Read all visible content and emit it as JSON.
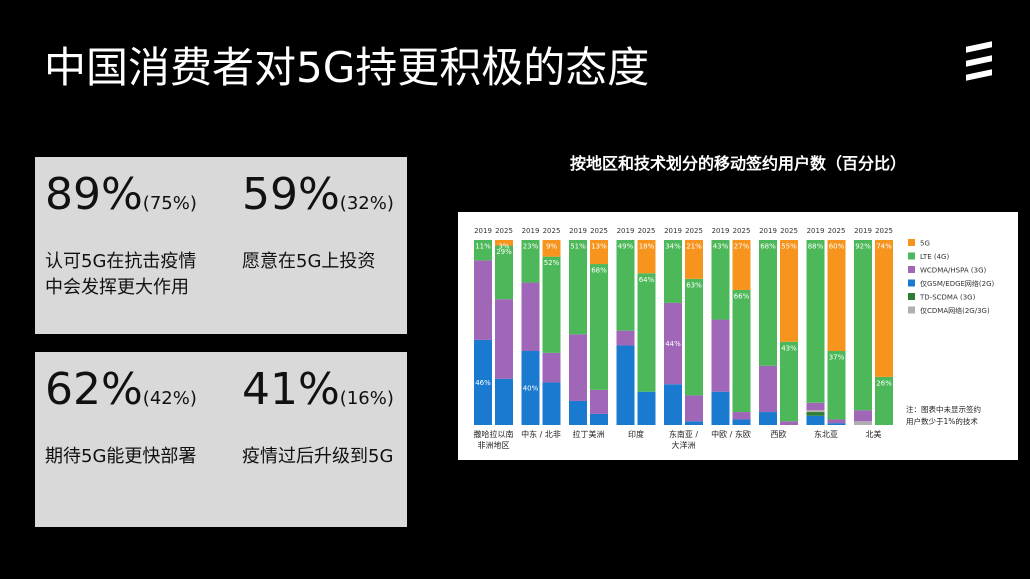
{
  "title": "中国消费者对5G持更积极的态度",
  "cards": [
    {
      "number": "89%",
      "sub": "(75%)",
      "lines": [
        "认可5G在抗击疫情",
        "中会发挥更大作用"
      ]
    },
    {
      "number": "59%",
      "sub": "(32%)",
      "lines": [
        "愿意在5G上投资"
      ]
    },
    {
      "number": "62%",
      "sub": "(42%)",
      "lines": [
        "期待5G能更快部署"
      ]
    },
    {
      "number": "41%",
      "sub": "(16%)",
      "lines": [
        "疫情过后升级到5G"
      ]
    }
  ],
  "chart_data": {
    "type": "bar",
    "stacked": true,
    "title": "按地区和技术划分的移动签约用户数（百分比）",
    "groups": [
      [
        "撒哈拉以南",
        "非洲地区"
      ],
      [
        "中东 / 北非"
      ],
      [
        "拉丁美洲"
      ],
      [
        "印度"
      ],
      [
        "东南亚 /",
        "大洋洲"
      ],
      [
        "中欧 / 东欧"
      ],
      [
        "西欧"
      ],
      [
        "东北亚"
      ],
      [
        "北美"
      ]
    ],
    "years": [
      "2019",
      "2025"
    ],
    "ylim": [
      0,
      100
    ],
    "series": [
      {
        "name": "仅GSM/EDGE网络(2G)",
        "color": "#1a7ad0",
        "values": [
          46,
          25,
          40,
          23,
          13,
          6,
          43,
          18,
          22,
          2,
          18,
          3,
          7,
          0,
          5,
          1,
          0,
          0
        ],
        "value_labels": [
          "46%",
          null,
          "40%",
          null,
          null,
          null,
          null,
          null,
          null,
          null,
          null,
          null,
          null,
          null,
          null,
          null,
          null,
          null
        ]
      },
      {
        "name": "TD-SCDMA (3G)",
        "color": "#2e7d32",
        "values": [
          0,
          0,
          0,
          0,
          0,
          0,
          0,
          0,
          0,
          0,
          0,
          0,
          0,
          0,
          2,
          0,
          0,
          0
        ]
      },
      {
        "name": "仅CDMA网络(2G/3G)",
        "color": "#b0b0b0",
        "values": [
          0,
          0,
          0,
          0,
          0,
          0,
          0,
          0,
          0,
          0,
          0,
          0,
          0,
          0,
          1,
          0,
          2,
          0
        ]
      },
      {
        "name": "WCDMA/HSPA (3G)",
        "color": "#a066b8",
        "values": [
          43,
          43,
          37,
          16,
          36,
          13,
          8,
          0,
          44,
          14,
          39,
          4,
          25,
          2,
          4,
          2,
          6,
          0
        ],
        "value_labels": [
          null,
          null,
          null,
          null,
          null,
          null,
          null,
          null,
          "44%",
          null,
          null,
          null,
          null,
          null,
          null,
          null,
          null,
          null
        ]
      },
      {
        "name": "LTE (4G)",
        "color": "#4cb859",
        "values": [
          11,
          29,
          23,
          52,
          51,
          68,
          49,
          64,
          34,
          63,
          43,
          66,
          68,
          43,
          88,
          37,
          92,
          26
        ],
        "value_labels": [
          "11%",
          "29%",
          "23%",
          "52%",
          "51%",
          "68%",
          "49%",
          "64%",
          "34%",
          "63%",
          "43%",
          "66%",
          "68%",
          "43%",
          "88%",
          "37%",
          "92%",
          "26%"
        ]
      },
      {
        "name": "5G",
        "color": "#f7941d",
        "values": [
          0,
          3,
          0,
          9,
          0,
          13,
          0,
          18,
          0,
          21,
          0,
          27,
          0,
          55,
          0,
          60,
          0,
          74
        ],
        "value_labels": [
          null,
          "3%",
          null,
          "9%",
          null,
          "13%",
          null,
          "18%",
          null,
          "21%",
          null,
          "27%",
          null,
          "55%",
          null,
          "60%",
          null,
          "74%"
        ]
      }
    ],
    "legend_order": [
      5,
      4,
      3,
      0,
      1,
      2
    ],
    "note": [
      "注：图表中未显示签约",
      "用户数少于1%的技术"
    ]
  }
}
